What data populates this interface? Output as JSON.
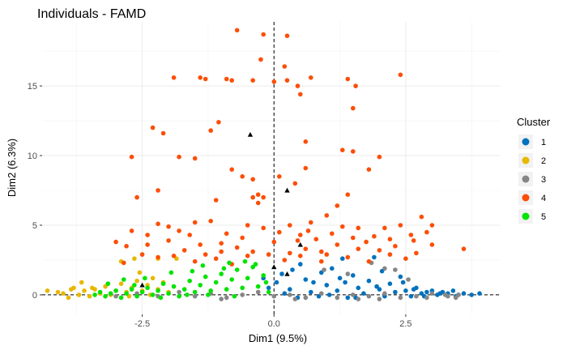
{
  "chart_data": {
    "type": "scatter",
    "title": "Individuals - FAMD",
    "xlabel": "Dim1 (9.5%)",
    "ylabel": "Dim2 (6.3%)",
    "xlim": [
      -4.4,
      4.3
    ],
    "ylim": [
      -1.4,
      19.6
    ],
    "x_ticks": [
      -2.5,
      0,
      2.5
    ],
    "x_tick_labels": [
      "-2.5",
      "0.0",
      "2.5"
    ],
    "y_ticks": [
      0,
      5,
      10,
      15
    ],
    "y_tick_labels": [
      "0",
      "5",
      "10",
      "15"
    ],
    "grid": true,
    "reference_lines": {
      "x": 0,
      "y": 0,
      "style": "dashed"
    },
    "legend": {
      "title": "Cluster",
      "placement": "right",
      "entries": [
        {
          "label": "1",
          "color": "#0072BD"
        },
        {
          "label": "2",
          "color": "#E7B800"
        },
        {
          "label": "3",
          "color": "#868686"
        },
        {
          "label": "4",
          "color": "#FC4E07"
        },
        {
          "label": "5",
          "color": "#00E300"
        }
      ]
    },
    "series": [
      {
        "name": "1",
        "color": "#0072BD",
        "points": [
          [
            0.05,
            0.9
          ],
          [
            0.15,
            1.5
          ],
          [
            0.3,
            0.4
          ],
          [
            0.45,
            -0.2
          ],
          [
            0.6,
            1.1
          ],
          [
            0.7,
            0.2
          ],
          [
            0.85,
            -0.1
          ],
          [
            1.0,
            0.7
          ],
          [
            1.1,
            1.9
          ],
          [
            1.2,
            0.3
          ],
          [
            1.3,
            2.6
          ],
          [
            1.4,
            -0.2
          ],
          [
            1.5,
            1.4
          ],
          [
            1.6,
            0.5
          ],
          [
            1.7,
            0.1
          ],
          [
            1.8,
            1.0
          ],
          [
            1.9,
            2.7
          ],
          [
            2.0,
            0.4
          ],
          [
            2.1,
            -0.1
          ],
          [
            2.2,
            0.8
          ],
          [
            2.3,
            0.2
          ],
          [
            2.4,
            1.3
          ],
          [
            2.5,
            0.3
          ],
          [
            2.6,
            -0.1
          ],
          [
            2.7,
            0.5
          ],
          [
            2.8,
            0.1
          ],
          [
            2.9,
            0.2
          ],
          [
            3.0,
            0.3
          ],
          [
            3.1,
            0.0
          ],
          [
            3.2,
            0.2
          ],
          [
            3.3,
            0.1
          ],
          [
            3.4,
            0.3
          ],
          [
            3.5,
            0.0
          ],
          [
            3.6,
            0.1
          ],
          [
            3.75,
            0.0
          ],
          [
            3.9,
            0.1
          ],
          [
            0.5,
            2.2
          ],
          [
            0.9,
            1.6
          ],
          [
            1.25,
            1.2
          ],
          [
            0.35,
            1.8
          ],
          [
            -0.2,
            1.2
          ],
          [
            -0.1,
            0.5
          ],
          [
            2.05,
            1.7
          ],
          [
            2.45,
            0.9
          ],
          [
            0.75,
            0.9
          ],
          [
            1.55,
            -0.2
          ],
          [
            1.95,
            0.6
          ],
          [
            2.65,
            0.4
          ],
          [
            2.85,
            -0.1
          ],
          [
            3.15,
            0.1
          ],
          [
            3.45,
            -0.1
          ],
          [
            0.2,
            0.1
          ],
          [
            1.05,
            0.0
          ],
          [
            1.35,
            0.9
          ]
        ]
      },
      {
        "name": "2",
        "color": "#E7B800",
        "points": [
          [
            -4.3,
            0.3
          ],
          [
            -4.1,
            0.2
          ],
          [
            -4.0,
            0.1
          ],
          [
            -3.9,
            -0.2
          ],
          [
            -3.8,
            0.5
          ],
          [
            -3.7,
            0.0
          ],
          [
            -3.6,
            0.3
          ],
          [
            -3.5,
            -0.1
          ],
          [
            -3.4,
            0.4
          ],
          [
            -3.3,
            0.1
          ],
          [
            -3.2,
            0.6
          ],
          [
            -3.1,
            0.0
          ],
          [
            -3.0,
            0.3
          ],
          [
            -2.9,
            0.8
          ],
          [
            -2.8,
            0.2
          ],
          [
            -2.7,
            0.5
          ],
          [
            -2.6,
            1.0
          ],
          [
            -2.5,
            0.3
          ],
          [
            -2.4,
            0.7
          ],
          [
            -2.3,
            1.2
          ],
          [
            -2.2,
            0.4
          ],
          [
            -2.1,
            0.9
          ],
          [
            -2.0,
            0.2
          ],
          [
            -3.65,
            0.9
          ],
          [
            -2.55,
            1.6
          ],
          [
            -2.9,
            2.4
          ],
          [
            -2.2,
            2.6
          ],
          [
            -1.85,
            2.6
          ],
          [
            -2.65,
            2.6
          ],
          [
            -3.45,
            0.5
          ],
          [
            -3.85,
            0.4
          ],
          [
            -2.35,
            0.0
          ],
          [
            -2.75,
            -0.1
          ],
          [
            -3.15,
            0.8
          ]
        ]
      },
      {
        "name": "3",
        "color": "#868686",
        "points": [
          [
            -3.0,
            -0.1
          ],
          [
            -2.6,
            0.1
          ],
          [
            -2.2,
            -0.1
          ],
          [
            -1.8,
            0.2
          ],
          [
            -1.5,
            -0.1
          ],
          [
            -1.2,
            0.1
          ],
          [
            -0.9,
            -0.2
          ],
          [
            -0.6,
            0.0
          ],
          [
            -0.3,
            0.2
          ],
          [
            0.0,
            -0.1
          ],
          [
            0.3,
            0.0
          ],
          [
            0.6,
            -0.2
          ],
          [
            0.9,
            0.1
          ],
          [
            1.2,
            -0.2
          ],
          [
            1.5,
            0.0
          ],
          [
            1.8,
            -0.1
          ],
          [
            2.1,
            0.1
          ],
          [
            2.4,
            -0.2
          ],
          [
            2.7,
            -0.1
          ],
          [
            3.0,
            0.1
          ],
          [
            3.3,
            -0.1
          ],
          [
            3.5,
            0.0
          ],
          [
            1.4,
            1.5
          ],
          [
            2.1,
            1.9
          ],
          [
            2.3,
            1.8
          ],
          [
            1.85,
            2.3
          ],
          [
            0.95,
            1.8
          ],
          [
            2.55,
            1.1
          ],
          [
            1.6,
            -0.3
          ],
          [
            2.0,
            -0.3
          ],
          [
            2.9,
            -0.2
          ],
          [
            3.25,
            0.0
          ],
          [
            3.45,
            -0.2
          ],
          [
            0.4,
            -0.3
          ],
          [
            -1.0,
            -0.3
          ]
        ]
      },
      {
        "name": "4",
        "color": "#FC4E07",
        "points": [
          [
            -0.7,
            19.0
          ],
          [
            -0.2,
            18.7
          ],
          [
            0.25,
            18.6
          ],
          [
            -0.25,
            16.9
          ],
          [
            0.2,
            16.4
          ],
          [
            2.4,
            15.8
          ],
          [
            -1.9,
            15.6
          ],
          [
            -1.4,
            15.6
          ],
          [
            -1.3,
            15.5
          ],
          [
            -0.9,
            15.5
          ],
          [
            -0.8,
            15.4
          ],
          [
            -0.4,
            15.4
          ],
          [
            0.0,
            15.3
          ],
          [
            0.25,
            15.4
          ],
          [
            0.45,
            15.0
          ],
          [
            0.7,
            15.6
          ],
          [
            1.4,
            15.5
          ],
          [
            1.55,
            15.0
          ],
          [
            0.5,
            14.4
          ],
          [
            1.5,
            13.4
          ],
          [
            -2.3,
            12.0
          ],
          [
            -2.1,
            11.6
          ],
          [
            -1.2,
            11.8
          ],
          [
            -1.05,
            12.4
          ],
          [
            0.6,
            11.0
          ],
          [
            1.3,
            10.4
          ],
          [
            1.5,
            10.3
          ],
          [
            2.0,
            9.9
          ],
          [
            -1.8,
            9.9
          ],
          [
            -1.5,
            9.8
          ],
          [
            -2.7,
            9.9
          ],
          [
            -0.8,
            9.0
          ],
          [
            -0.6,
            8.5
          ],
          [
            -0.4,
            8.3
          ],
          [
            -0.3,
            7.2
          ],
          [
            0.1,
            8.5
          ],
          [
            0.4,
            8.0
          ],
          [
            0.6,
            9.1
          ],
          [
            1.8,
            9.0
          ],
          [
            -0.4,
            7.0
          ],
          [
            -0.2,
            7.0
          ],
          [
            -2.2,
            7.5
          ],
          [
            -2.6,
            7.0
          ],
          [
            -1.1,
            6.8
          ],
          [
            -0.3,
            6.6
          ],
          [
            1.2,
            6.4
          ],
          [
            1.4,
            7.2
          ],
          [
            -2.2,
            5.1
          ],
          [
            -2.0,
            4.9
          ],
          [
            -1.5,
            5.2
          ],
          [
            -1.2,
            5.3
          ],
          [
            -0.5,
            5.0
          ],
          [
            -0.2,
            4.8
          ],
          [
            0.3,
            5.0
          ],
          [
            0.7,
            5.2
          ],
          [
            1.0,
            5.7
          ],
          [
            1.3,
            4.9
          ],
          [
            1.6,
            4.8
          ],
          [
            2.1,
            4.8
          ],
          [
            2.4,
            5.0
          ],
          [
            2.8,
            5.6
          ],
          [
            3.0,
            5.0
          ],
          [
            -2.7,
            4.6
          ],
          [
            -2.4,
            4.3
          ],
          [
            -1.8,
            4.6
          ],
          [
            -1.6,
            4.3
          ],
          [
            -0.9,
            4.4
          ],
          [
            -0.6,
            4.1
          ],
          [
            0.1,
            4.5
          ],
          [
            0.5,
            4.3
          ],
          [
            0.8,
            4.0
          ],
          [
            1.1,
            4.4
          ],
          [
            1.5,
            4.1
          ],
          [
            1.9,
            4.2
          ],
          [
            2.2,
            4.0
          ],
          [
            2.6,
            4.3
          ],
          [
            2.9,
            4.5
          ],
          [
            -3.0,
            3.8
          ],
          [
            -2.8,
            3.5
          ],
          [
            -2.4,
            3.6
          ],
          [
            -2.0,
            3.9
          ],
          [
            -1.7,
            3.2
          ],
          [
            -1.4,
            3.6
          ],
          [
            -1.0,
            3.1
          ],
          [
            -0.7,
            3.4
          ],
          [
            -0.4,
            3.1
          ],
          [
            0.0,
            3.8
          ],
          [
            0.3,
            3.0
          ],
          [
            0.6,
            3.3
          ],
          [
            0.9,
            3.1
          ],
          [
            1.2,
            3.6
          ],
          [
            1.6,
            3.3
          ],
          [
            2.0,
            3.2
          ],
          [
            2.3,
            3.5
          ],
          [
            2.7,
            3.0
          ],
          [
            3.0,
            3.6
          ],
          [
            -2.5,
            2.9
          ],
          [
            -2.2,
            2.7
          ],
          [
            -1.9,
            2.8
          ],
          [
            -1.5,
            2.4
          ],
          [
            -1.1,
            2.6
          ],
          [
            -0.8,
            2.2
          ],
          [
            -0.5,
            2.8
          ],
          [
            0.2,
            2.5
          ],
          [
            0.5,
            2.8
          ],
          [
            0.9,
            2.4
          ],
          [
            1.4,
            2.7
          ],
          [
            1.8,
            2.4
          ],
          [
            2.2,
            2.9
          ],
          [
            2.5,
            2.6
          ],
          [
            3.6,
            3.3
          ],
          [
            -1.0,
            3.7
          ],
          [
            -0.1,
            2.9
          ],
          [
            0.45,
            3.9
          ],
          [
            1.75,
            3.8
          ],
          [
            1.0,
            2.9
          ],
          [
            -1.3,
            2.9
          ],
          [
            2.65,
            3.9
          ],
          [
            0.65,
            4.6
          ],
          [
            -2.85,
            2.3
          ]
        ]
      },
      {
        "name": "5",
        "color": "#00E300",
        "points": [
          [
            -3.4,
            0.0
          ],
          [
            -3.3,
            0.2
          ],
          [
            -3.2,
            -0.1
          ],
          [
            -3.1,
            0.1
          ],
          [
            -3.0,
            0.3
          ],
          [
            -2.9,
            -0.2
          ],
          [
            -2.8,
            0.1
          ],
          [
            -2.7,
            0.4
          ],
          [
            -2.6,
            -0.1
          ],
          [
            -2.5,
            0.2
          ],
          [
            -2.4,
            0.5
          ],
          [
            -2.3,
            0.0
          ],
          [
            -2.2,
            0.3
          ],
          [
            -2.1,
            0.8
          ],
          [
            -2.0,
            0.1
          ],
          [
            -1.9,
            0.6
          ],
          [
            -1.8,
            -0.1
          ],
          [
            -1.7,
            0.4
          ],
          [
            -1.6,
            1.0
          ],
          [
            -1.5,
            0.2
          ],
          [
            -1.4,
            0.7
          ],
          [
            -1.3,
            1.3
          ],
          [
            -1.2,
            0.3
          ],
          [
            -1.1,
            0.9
          ],
          [
            -1.0,
            1.5
          ],
          [
            -0.9,
            0.4
          ],
          [
            -0.8,
            1.1
          ],
          [
            -0.7,
            1.8
          ],
          [
            -0.6,
            0.5
          ],
          [
            -0.5,
            1.2
          ],
          [
            -0.4,
            2.0
          ],
          [
            -0.3,
            0.6
          ],
          [
            -0.2,
            1.4
          ],
          [
            -0.1,
            0.2
          ],
          [
            -1.95,
            1.6
          ],
          [
            -1.35,
            2.1
          ],
          [
            -0.85,
            2.3
          ],
          [
            -0.35,
            2.2
          ],
          [
            -2.45,
            1.2
          ],
          [
            -3.15,
            0.8
          ],
          [
            -2.85,
            1.1
          ],
          [
            -1.55,
            1.7
          ],
          [
            -0.95,
            1.9
          ],
          [
            -0.55,
            2.4
          ],
          [
            -1.25,
            0.0
          ],
          [
            -0.75,
            -0.1
          ],
          [
            -2.15,
            -0.2
          ],
          [
            -1.65,
            0.0
          ],
          [
            -0.15,
            0.9
          ],
          [
            -2.65,
            0.7
          ]
        ]
      }
    ],
    "cluster_centers": {
      "marker": "triangle",
      "color": "#000000",
      "points": [
        [
          -0.45,
          11.5
        ],
        [
          0.25,
          7.5
        ],
        [
          0.5,
          3.6
        ],
        [
          0.0,
          2.0
        ],
        [
          0.25,
          1.5
        ],
        [
          -2.5,
          0.7
        ]
      ]
    }
  }
}
